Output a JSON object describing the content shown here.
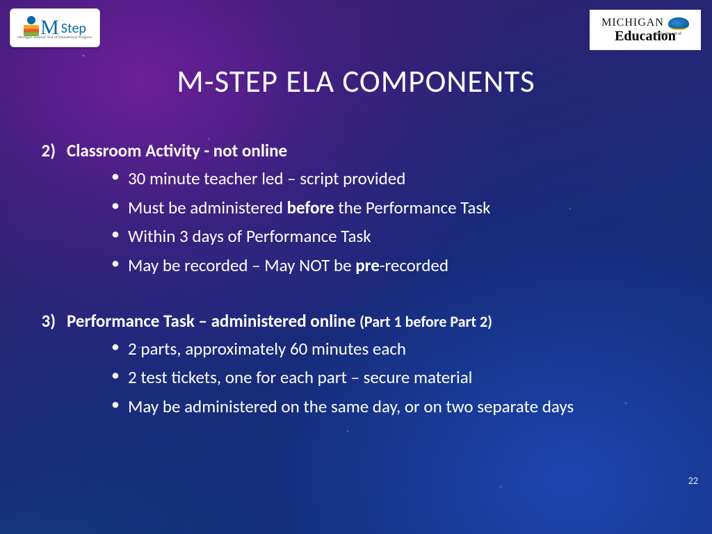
{
  "title": "M-STEP ELA COMPONENTS",
  "logo_left": {
    "m": "M",
    "step": "Step",
    "sub": "Michigan Student Test of Educational Progress"
  },
  "logo_right": {
    "mich": "MICHIGAN",
    "dept": "Department of",
    "edu": "Education"
  },
  "items": [
    {
      "num": "2)",
      "heading": "Classroom Activity - not online",
      "paren": "",
      "bullets": [
        {
          "pre": "30 minute teacher led – script provided",
          "bold": "",
          "post": ""
        },
        {
          "pre": "Must be administered ",
          "bold": "before",
          "post": " the Performance Task"
        },
        {
          "pre": "Within 3 days of Performance Task",
          "bold": "",
          "post": ""
        },
        {
          "pre": "May be recorded – May NOT be ",
          "bold": "pre",
          "post": "-recorded"
        }
      ]
    },
    {
      "num": "3)",
      "heading": "Performance Task – administered online ",
      "paren": "(Part 1 before Part 2)",
      "bullets": [
        {
          "pre": "2 parts, approximately 60 minutes each",
          "bold": "",
          "post": ""
        },
        {
          "pre": "2  test tickets, one for each part – secure material",
          "bold": "",
          "post": ""
        },
        {
          "pre": "May be administered on the same day, or on two separate days",
          "bold": "",
          "post": ""
        }
      ]
    }
  ],
  "page_number": "22",
  "colors": {
    "text": "#ffffff",
    "bg_top": "#3a1d6e",
    "bg_bottom": "#0f3a82"
  },
  "typography": {
    "title_fontsize": 45,
    "body_fontsize": 25,
    "font_family": "Calibri"
  }
}
